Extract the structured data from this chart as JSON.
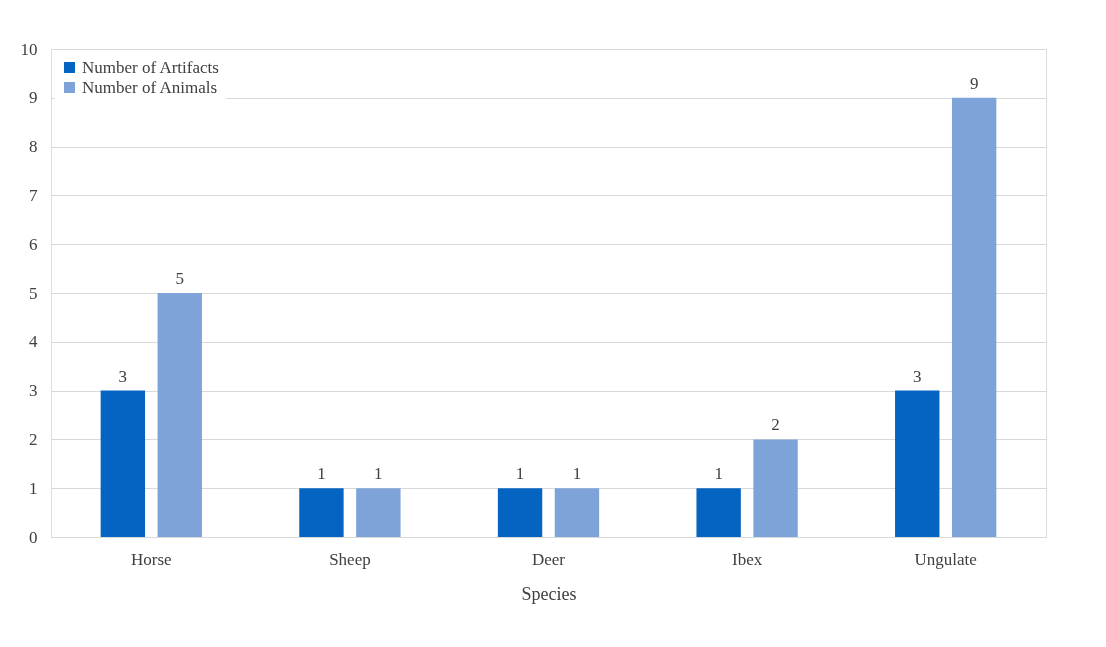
{
  "chart_data": {
    "type": "bar",
    "xlabel": "Species",
    "categories": [
      "Horse",
      "Sheep",
      "Deer",
      "Ibex",
      "Ungulate"
    ],
    "series": [
      {
        "name": "Number of Artifacts",
        "color": "#0563c1",
        "values": [
          3,
          1,
          1,
          1,
          3
        ]
      },
      {
        "name": "Number of Animals",
        "color": "#7da3d8",
        "values": [
          5,
          1,
          1,
          2,
          9
        ]
      }
    ],
    "ylim": [
      0,
      10
    ],
    "yticks": [
      0,
      1,
      2,
      3,
      4,
      5,
      6,
      7,
      8,
      9,
      10
    ],
    "grid": "y",
    "legend": "top left",
    "data_labels": true
  }
}
